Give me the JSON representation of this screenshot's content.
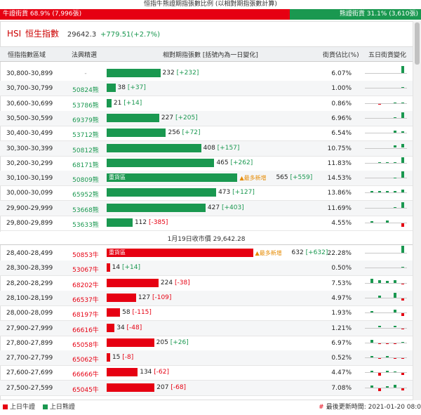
{
  "title": "恒指牛熊證期指張數比例 (以相對期指張數計算)",
  "ratio": {
    "bull_label": "牛證街貨 68.9% (7,996張)",
    "bear_label": "熊證街貨 31.1% (3,610張)",
    "bull_fraction": 0.689
  },
  "index": {
    "code": "HSI",
    "name": "恒生指數",
    "price": "29642.3",
    "change": "+779.51(+2.7%)"
  },
  "headers": {
    "range": "恒指指數區域",
    "code": "法興精選",
    "qty": "相對期指張數 [括號內為一日變化]",
    "pct": "街貨佔比(%)",
    "trend": "五日街貨變化"
  },
  "heavy_label": "重貨區",
  "new_label": "▲最多新增",
  "close_label": "1月19日收市價 29,642.28",
  "colors": {
    "bull": "#e60012",
    "bear": "#1a9850"
  },
  "bear_rows": [
    {
      "range": "30,800-30,899",
      "code": "-",
      "qty": 232,
      "qty_text": "232",
      "chg": "[+232]",
      "pct": "6.07%",
      "spark": [
        0,
        0,
        0,
        0,
        6
      ],
      "heavy": false,
      "new": false
    },
    {
      "range": "30,700-30,799",
      "code": "50824熊",
      "qty": 38,
      "qty_text": "38",
      "chg": "[+37]",
      "pct": "1.00%",
      "spark": [
        0,
        0,
        0,
        0,
        1
      ],
      "heavy": false,
      "new": false
    },
    {
      "range": "30,600-30,699",
      "code": "53786熊",
      "qty": 21,
      "qty_text": "21",
      "chg": "[+14]",
      "pct": "0.86%",
      "spark": [
        0,
        -0.3,
        0,
        0.3,
        0.6
      ],
      "heavy": false,
      "new": false
    },
    {
      "range": "30,500-30,599",
      "code": "69379熊",
      "qty": 227,
      "qty_text": "227",
      "chg": "[+205]",
      "pct": "6.96%",
      "spark": [
        0,
        0,
        0,
        0.3,
        5
      ],
      "heavy": false,
      "new": false
    },
    {
      "range": "30,400-30,499",
      "code": "53712熊",
      "qty": 256,
      "qty_text": "256",
      "chg": "[+72]",
      "pct": "6.54%",
      "spark": [
        0,
        0,
        0,
        2.2,
        1.3
      ],
      "heavy": false,
      "new": false
    },
    {
      "range": "30,300-30,399",
      "code": "50812熊",
      "qty": 408,
      "qty_text": "408",
      "chg": "[+157]",
      "pct": "10.75%",
      "spark": [
        0,
        0,
        0,
        2,
        3.3
      ],
      "heavy": false,
      "new": false
    },
    {
      "range": "30,200-30,299",
      "code": "68171熊",
      "qty": 465,
      "qty_text": "465",
      "chg": "[+262]",
      "pct": "11.83%",
      "spark": [
        0,
        0.3,
        0.3,
        0.3,
        5
      ],
      "heavy": false,
      "new": false
    },
    {
      "range": "30,100-30,199",
      "code": "50809熊",
      "qty": 565,
      "qty_text": "565",
      "chg": "[+559]",
      "pct": "14.53%",
      "spark": [
        0,
        0,
        0,
        0.3,
        5.5
      ],
      "heavy": true,
      "new": true
    },
    {
      "range": "30,000-30,099",
      "code": "65952熊",
      "qty": 473,
      "qty_text": "473",
      "chg": "[+127]",
      "pct": "13.86%",
      "spark": [
        1.5,
        1.7,
        1.7,
        1.8,
        2.5
      ],
      "heavy": false,
      "new": false
    },
    {
      "range": "29,900-29,999",
      "code": "53668熊",
      "qty": 427,
      "qty_text": "427",
      "chg": "[+403]",
      "pct": "11.69%",
      "spark": [
        0,
        0,
        0,
        0.3,
        5
      ],
      "heavy": false,
      "new": false
    },
    {
      "range": "29,800-29,899",
      "code": "53633熊",
      "qty": 112,
      "qty_text": "112",
      "chg": "[-385]",
      "pct": "4.55%",
      "spark": [
        1,
        0,
        1.6,
        0,
        -3
      ],
      "heavy": false,
      "new": false
    }
  ],
  "bull_rows": [
    {
      "range": "28,400-28,499",
      "code": "50853牛",
      "qty": 632,
      "qty_text": "632",
      "chg": "[+632]",
      "pct": "22.28%",
      "spark": [
        0,
        0,
        0,
        0,
        6
      ],
      "heavy": true,
      "new": true
    },
    {
      "range": "28,300-28,399",
      "code": "53067牛",
      "qty": 14,
      "qty_text": "14",
      "chg": "[+14]",
      "pct": "0.50%",
      "spark": [
        0,
        0,
        0,
        0,
        0.5
      ],
      "heavy": false,
      "new": false
    },
    {
      "range": "28,200-28,299",
      "code": "68202牛",
      "qty": 224,
      "qty_text": "224",
      "chg": "[-38]",
      "pct": "7.53%",
      "spark": [
        3.5,
        2.4,
        1.8,
        2.5,
        -1
      ],
      "heavy": false,
      "new": false
    },
    {
      "range": "28,100-28,199",
      "code": "66537牛",
      "qty": 127,
      "qty_text": "127",
      "chg": "[-109]",
      "pct": "4.97%",
      "spark": [
        0,
        2,
        0,
        4.3,
        -2
      ],
      "heavy": false,
      "new": false
    },
    {
      "range": "28,000-28,099",
      "code": "68197牛",
      "qty": 58,
      "qty_text": "58",
      "chg": "[-115]",
      "pct": "1.93%",
      "spark": [
        1.3,
        0,
        0,
        2.6,
        -2.2
      ],
      "heavy": false,
      "new": false
    },
    {
      "range": "27,900-27,999",
      "code": "66616牛",
      "qty": 34,
      "qty_text": "34",
      "chg": "[-48]",
      "pct": "1.21%",
      "spark": [
        0,
        1.4,
        0,
        1.8,
        -1.2
      ],
      "heavy": false,
      "new": false
    },
    {
      "range": "27,800-27,899",
      "code": "65058牛",
      "qty": 205,
      "qty_text": "205",
      "chg": "[+26]",
      "pct": "6.97%",
      "spark": [
        2.4,
        -0.3,
        -0.3,
        -0.3,
        0.6
      ],
      "heavy": false,
      "new": false
    },
    {
      "range": "27,700-27,799",
      "code": "65062牛",
      "qty": 15,
      "qty_text": "15",
      "chg": "[-8]",
      "pct": "0.52%",
      "spark": [
        1.2,
        -0.3,
        1.2,
        -0.3,
        -0.3
      ],
      "heavy": false,
      "new": false
    },
    {
      "range": "27,600-27,699",
      "code": "66666牛",
      "qty": 134,
      "qty_text": "134",
      "chg": "[-62]",
      "pct": "4.47%",
      "spark": [
        1.6,
        -2.5,
        1.2,
        1,
        -1.8
      ],
      "heavy": false,
      "new": false
    },
    {
      "range": "27,500-27,599",
      "code": "65045牛",
      "qty": 207,
      "qty_text": "207",
      "chg": "[-68]",
      "pct": "7.08%",
      "spark": [
        1.6,
        -2.4,
        1.2,
        2.6,
        -2.2
      ],
      "heavy": false,
      "new": false
    }
  ],
  "legend": {
    "bull": "上日牛證",
    "bear": "上日熊證"
  },
  "footer": {
    "mark": "#",
    "label": "最後更新時間: 2021-01-20 08:0"
  }
}
